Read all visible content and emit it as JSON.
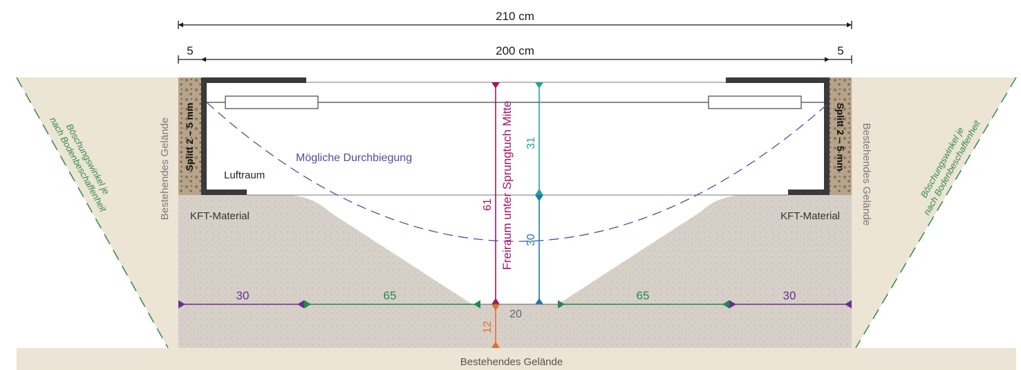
{
  "dimensions": {
    "overall_width": "210 cm",
    "inner_width": "200 cm",
    "left_edge": "5",
    "right_edge": "5"
  },
  "labels": {
    "ground_left": "Bestehendes Gelände",
    "ground_right": "Bestehendes Gelände",
    "ground_bottom": "Bestehendes Gelände",
    "slope_left": [
      "Böschungswinkel je",
      "nach Bodenbeschaffenheit"
    ],
    "slope_right": [
      "Böschungswinkel je",
      "nach Bodenbeschaffenheit"
    ],
    "gravel_left": "Splitt 2 – 5 mm",
    "gravel_right": "Splitt 2 – 5 mm",
    "air_space": "Luftraum",
    "deflection": "Mögliche Durchbiegung",
    "fill_left": "KFT-Material",
    "fill_right": "KFT-Material",
    "clearance_vertical": "Freiraum unter Sprungtuch Mitte"
  },
  "measures": {
    "clearance_total": "61",
    "upper_depth": "31",
    "lower_depth": "30",
    "base_left_outer": "30",
    "base_left_slope": "65",
    "base_right_slope": "65",
    "base_right_outer": "30",
    "bottom_width": "20",
    "below_bottom": "12"
  },
  "colors": {
    "ground": "#ece4d5",
    "fill": "#d6d0c9",
    "gravel": "#b7a48a",
    "frame": "#3a3a3a",
    "dim_line": "#1a1a1a",
    "deflection": "#4c4ca6",
    "clearance": "#a3135e",
    "upper_depth": "#1aa698",
    "lower_depth": "#1b74b8",
    "outer_run": "#6a2f8f",
    "slope_run": "#1f8a4c",
    "below_bottom": "#ea6a25",
    "slope_text": "#2e8b45",
    "label_grey": "#7a7a7a"
  }
}
